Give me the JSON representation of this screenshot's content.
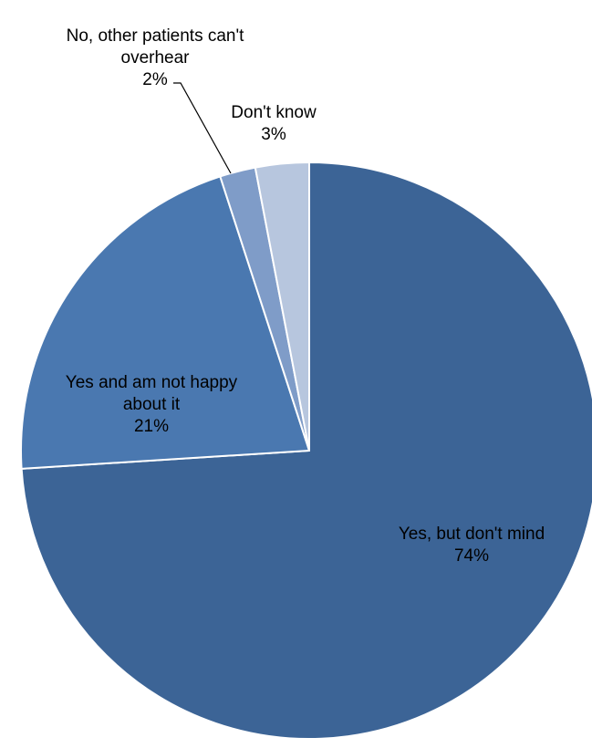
{
  "chart_data": {
    "type": "pie",
    "start_angle_deg": 0,
    "direction": "clockwise",
    "slices": [
      {
        "label_lines": [
          "Yes, but don't mind"
        ],
        "value": 74,
        "value_label": "74%",
        "color": "#3C6496"
      },
      {
        "label_lines": [
          "Yes and am not happy",
          "about it"
        ],
        "value": 21,
        "value_label": "21%",
        "color": "#4A78B0"
      },
      {
        "label_lines": [
          "No, other patients can't",
          "overhear"
        ],
        "value": 2,
        "value_label": "2%",
        "color": "#7F9CC8"
      },
      {
        "label_lines": [
          "Don't know"
        ],
        "value": 3,
        "value_label": "3%",
        "color": "#B7C6DE"
      }
    ],
    "legend": "none",
    "edge_stroke_color": "#FFFFFF"
  }
}
